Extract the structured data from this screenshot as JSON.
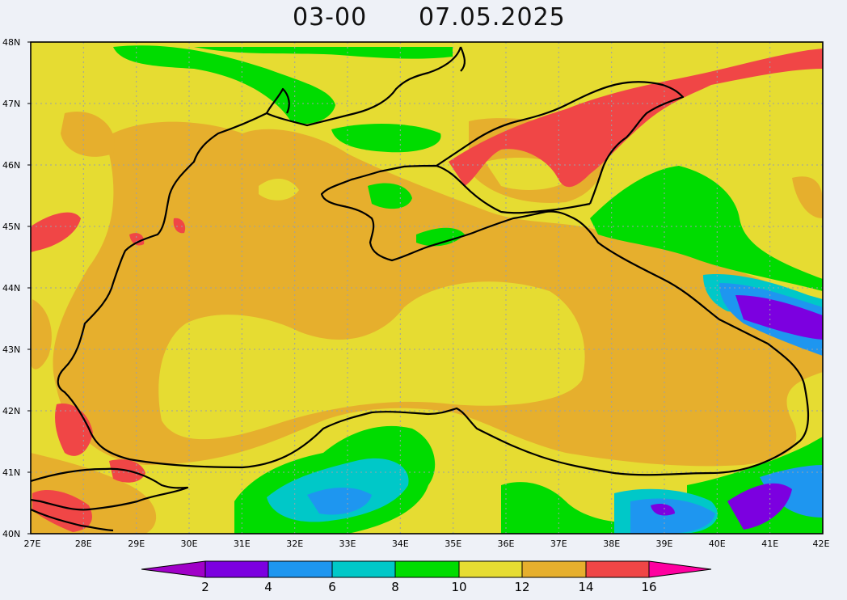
{
  "title": {
    "hour": "03-00",
    "date": "07.05.2025"
  },
  "map": {
    "lat_labels": [
      "48N",
      "47N",
      "46N",
      "45N",
      "44N",
      "43N",
      "42N",
      "41N",
      "40N"
    ],
    "lon_labels": [
      "27E",
      "28E",
      "29E",
      "30E",
      "31E",
      "32E",
      "33E",
      "34E",
      "35E",
      "36E",
      "37E",
      "38E",
      "39E",
      "40E",
      "41E",
      "42E"
    ],
    "lat_range": [
      40,
      48
    ],
    "lon_range": [
      27,
      42
    ],
    "grid": true
  },
  "colorbar": {
    "labels": [
      "2",
      "4",
      "6",
      "8",
      "10",
      "12",
      "14",
      "16"
    ],
    "colors": [
      "#a000c8",
      "#7c00e0",
      "#1e96f0",
      "#00c8c8",
      "#00dc00",
      "#e6dc32",
      "#e6af2d",
      "#f04646",
      "#ff00a0"
    ]
  }
}
